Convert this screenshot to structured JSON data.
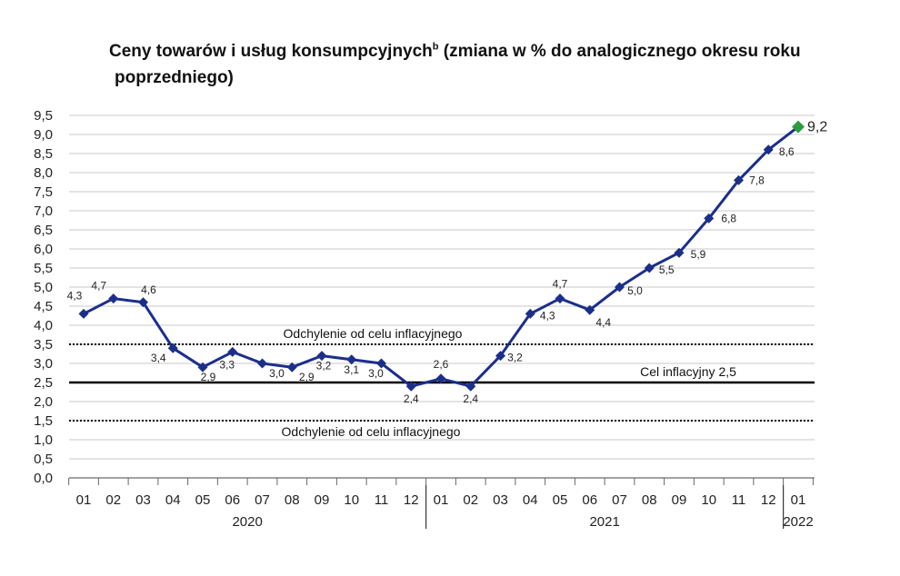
{
  "chart_data": {
    "type": "line",
    "title": "Ceny towarów i usług konsumpcyjnych",
    "title_superscript": "b",
    "title_rest": " (zmiana w % do analogicznego okresu roku",
    "title_line2": "poprzedniego)",
    "xlabel": "",
    "ylabel": "",
    "ylim": [
      0,
      9.5
    ],
    "ytick_labels": [
      "0,0",
      "0,5",
      "1,0",
      "1,5",
      "2,0",
      "2,5",
      "3,0",
      "3,5",
      "4,0",
      "4,5",
      "5,0",
      "5,5",
      "6,0",
      "6,5",
      "7,0",
      "7,5",
      "8,0",
      "8,5",
      "9,0",
      "9,5"
    ],
    "categories": [
      "01",
      "02",
      "03",
      "04",
      "05",
      "06",
      "07",
      "08",
      "09",
      "10",
      "11",
      "12",
      "01",
      "02",
      "03",
      "04",
      "05",
      "06",
      "07",
      "08",
      "09",
      "10",
      "11",
      "12",
      "01"
    ],
    "year_labels": [
      {
        "label": "2020",
        "from_index": 0,
        "to_index": 11
      },
      {
        "label": "2021",
        "from_index": 12,
        "to_index": 23
      },
      {
        "label": "2022",
        "from_index": 24,
        "to_index": 24
      }
    ],
    "series": [
      {
        "values": [
          4.3,
          4.7,
          4.6,
          3.4,
          2.9,
          3.3,
          3.0,
          2.9,
          3.2,
          3.1,
          3.0,
          2.4,
          2.6,
          2.4,
          3.2,
          4.3,
          4.7,
          4.4,
          5.0,
          5.5,
          5.9,
          6.8,
          7.8,
          8.6,
          9.2
        ],
        "value_labels": [
          "4,3",
          "4,7",
          "4,6",
          "3,4",
          "2,9",
          "3,3",
          "3,0",
          "2,9",
          "3,2",
          "3,1",
          "3,0",
          "2,4",
          "2,6",
          "2,4",
          "3,2",
          "4,3",
          "4,7",
          "4,4",
          "5,0",
          "5,5",
          "5,9",
          "6,8",
          "7,8",
          "8,6",
          "9,2"
        ],
        "color": "#1b2f8a",
        "highlight_last_color": "#2e9b3e"
      }
    ],
    "reference_lines": [
      {
        "value": 2.5,
        "style": "solid",
        "label": "Cel inflacyjny 2,5"
      },
      {
        "value": 3.5,
        "style": "dotted",
        "label": "Odchylenie od celu inflacyjnego"
      },
      {
        "value": 1.5,
        "style": "dotted",
        "label": "Odchylenie od celu inflacyjnego"
      }
    ],
    "grid": true
  }
}
